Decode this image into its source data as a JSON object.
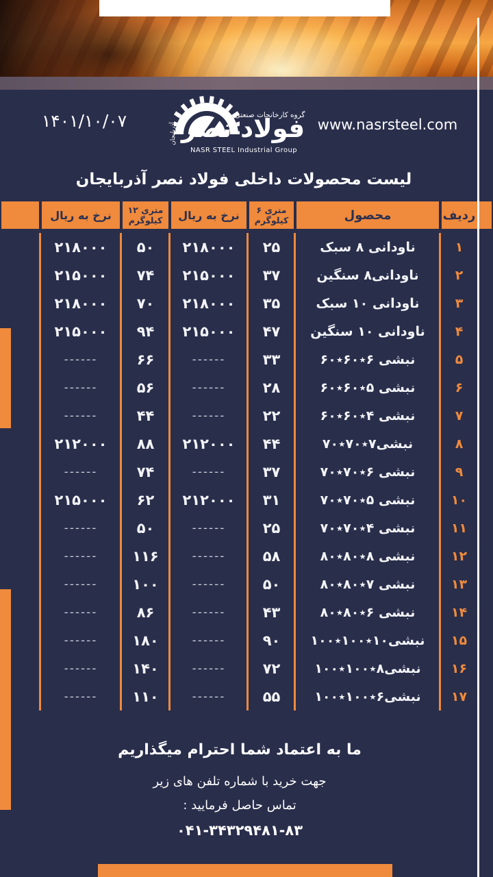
{
  "colors": {
    "navy": "#292e4b",
    "orange": "#f08a3c",
    "white": "#ffffff",
    "dash": "#c9cdd9",
    "mauve": "#6e5d69"
  },
  "header": {
    "date": "۱۴۰۱/۱۰/۰۷",
    "website": "www.nasrsteel.com"
  },
  "logo": {
    "group_text": "گروه کارخانجات صنعتی",
    "brand": "فولاد نصر",
    "region": "آذربایجان",
    "latin": "NASR STEEL Industrial Group"
  },
  "title": "لیست محصولات داخلی فولاد نصر آذربایجان",
  "table": {
    "headers": {
      "row": "ردیف",
      "product": "محصول",
      "kg6_line1": "۶ متری",
      "kg6_line2": "کیلوگرم",
      "price6": "نرخ به ریال",
      "kg12_line1": "۱۲ متری",
      "kg12_line2": "کیلوگرم",
      "price12": "نرخ به ریال"
    },
    "rows": [
      {
        "no": "۱",
        "product": "ناودانی ۸ سبک",
        "kg6": "۲۵",
        "price6": "۲۱۸۰۰۰",
        "kg12": "۵۰",
        "price12": "۲۱۸۰۰۰"
      },
      {
        "no": "۲",
        "product": "ناودانی۸ سنگین",
        "kg6": "۳۷",
        "price6": "۲۱۵۰۰۰",
        "kg12": "۷۴",
        "price12": "۲۱۵۰۰۰"
      },
      {
        "no": "۳",
        "product": "ناودانی ۱۰ سبک",
        "kg6": "۳۵",
        "price6": "۲۱۸۰۰۰",
        "kg12": "۷۰",
        "price12": "۲۱۸۰۰۰"
      },
      {
        "no": "۴",
        "product": "ناودانی ۱۰ سنگین",
        "kg6": "۴۷",
        "price6": "۲۱۵۰۰۰",
        "kg12": "۹۴",
        "price12": "۲۱۵۰۰۰"
      },
      {
        "no": "۵",
        "product": "نبشی ۶٭۶۰٭۶۰",
        "kg6": "۳۳",
        "price6": "------",
        "kg12": "۶۶",
        "price12": "------"
      },
      {
        "no": "۶",
        "product": "نبشی ۵٭۶۰٭۶۰",
        "kg6": "۲۸",
        "price6": "------",
        "kg12": "۵۶",
        "price12": "------"
      },
      {
        "no": "۷",
        "product": "نبشی ۴٭۶۰٭۶۰",
        "kg6": "۲۲",
        "price6": "------",
        "kg12": "۴۴",
        "price12": "------"
      },
      {
        "no": "۸",
        "product": "نبشی۷٭۷۰٭۷۰",
        "kg6": "۴۴",
        "price6": "۲۱۲۰۰۰",
        "kg12": "۸۸",
        "price12": "۲۱۲۰۰۰"
      },
      {
        "no": "۹",
        "product": "نبشی ۶٭۷۰٭۷۰",
        "kg6": "۳۷",
        "price6": "------",
        "kg12": "۷۴",
        "price12": "------"
      },
      {
        "no": "۱۰",
        "product": "نبشی ۵٭۷۰٭۷۰",
        "kg6": "۳۱",
        "price6": "۲۱۲۰۰۰",
        "kg12": "۶۲",
        "price12": "۲۱۵۰۰۰"
      },
      {
        "no": "۱۱",
        "product": "نبشی ۴٭۷۰٭۷۰",
        "kg6": "۲۵",
        "price6": "------",
        "kg12": "۵۰",
        "price12": "------"
      },
      {
        "no": "۱۲",
        "product": "نبشی ۸٭۸۰٭۸۰",
        "kg6": "۵۸",
        "price6": "------",
        "kg12": "۱۱۶",
        "price12": "------"
      },
      {
        "no": "۱۳",
        "product": "نبشی ۷٭۸۰٭۸۰",
        "kg6": "۵۰",
        "price6": "------",
        "kg12": "۱۰۰",
        "price12": "------"
      },
      {
        "no": "۱۴",
        "product": "نبشی ۶٭۸۰٭۸۰",
        "kg6": "۴۳",
        "price6": "------",
        "kg12": "۸۶",
        "price12": "------"
      },
      {
        "no": "۱۵",
        "product": "نبشی۱۰٭۱۰۰٭۱۰۰",
        "kg6": "۹۰",
        "price6": "------",
        "kg12": "۱۸۰",
        "price12": "------"
      },
      {
        "no": "۱۶",
        "product": "نبشی۸٭۱۰۰٭۱۰۰",
        "kg6": "۷۲",
        "price6": "------",
        "kg12": "۱۴۰",
        "price12": "------"
      },
      {
        "no": "۱۷",
        "product": "نبشی۶٭۱۰۰٭۱۰۰",
        "kg6": "۵۵",
        "price6": "------",
        "kg12": "۱۱۰",
        "price12": "------"
      }
    ]
  },
  "footer": {
    "line1": "ما به اعتماد شما احترام میگذاریم",
    "line2": "جهت خرید با شماره تلفن های زیر",
    "line3": "تماس حاصل فرمایید :",
    "phone": "۰۴۱-۳۴۳۲۹۴۸۱-۸۳"
  }
}
